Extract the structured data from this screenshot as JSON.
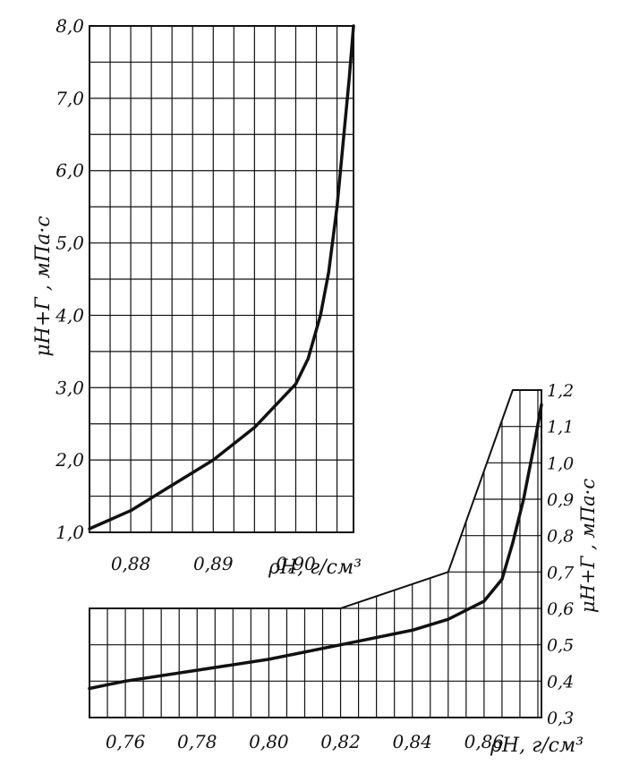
{
  "colors": {
    "ink": "#111111",
    "paper": "#ffffff"
  },
  "chart_data": [
    {
      "type": "line",
      "xlabel": "ρН, г/см³",
      "ylabel": "μН+Г , мПа·с",
      "xlim": [
        0.875,
        0.907
      ],
      "ylim": [
        1.0,
        8.0
      ],
      "x_ticks": [
        "0,88",
        "0,89",
        "0,90"
      ],
      "y_ticks": [
        "1,0",
        "2,0",
        "3,0",
        "4,0",
        "5,0",
        "6,0",
        "7,0",
        "8,0"
      ],
      "grid": true,
      "series": [
        {
          "x": [
            0.875,
            0.88,
            0.885,
            0.89,
            0.895,
            0.9,
            0.9015,
            0.903,
            0.904,
            0.905,
            0.906,
            0.9065,
            0.907
          ],
          "y": [
            1.05,
            1.3,
            1.65,
            2.0,
            2.45,
            3.05,
            3.4,
            4.0,
            4.6,
            5.5,
            6.7,
            7.3,
            8.0
          ]
        }
      ]
    },
    {
      "type": "line",
      "xlabel": "ρН, г/см³",
      "ylabel": "μН+Г , мПа·с",
      "xlim": [
        0.75,
        0.876
      ],
      "ylim": [
        0.3,
        1.2
      ],
      "x_ticks": [
        "0,76",
        "0,78",
        "0,80",
        "0,82",
        "0,84",
        "0,86"
      ],
      "y_ticks": [
        "0,3",
        "0,4",
        "0,5",
        "0,6",
        "0,7",
        "0,8",
        "0,9",
        "1,0",
        "1,1",
        "1,2"
      ],
      "grid": true,
      "series": [
        {
          "x": [
            0.75,
            0.76,
            0.78,
            0.8,
            0.82,
            0.84,
            0.85,
            0.86,
            0.865,
            0.868,
            0.871,
            0.874,
            0.876
          ],
          "y": [
            0.38,
            0.4,
            0.43,
            0.46,
            0.5,
            0.54,
            0.57,
            0.62,
            0.68,
            0.78,
            0.9,
            1.05,
            1.16
          ]
        }
      ]
    }
  ]
}
